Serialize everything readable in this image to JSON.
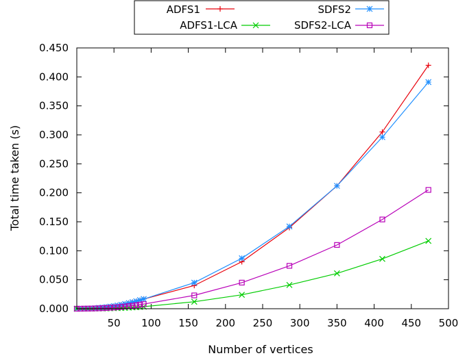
{
  "chart_data": {
    "type": "line",
    "xlabel": "Number of vertices",
    "ylabel": "Total time taken  (s)",
    "xlim": [
      0,
      500
    ],
    "ylim": [
      0,
      0.45
    ],
    "x_ticks": [
      "50",
      "100",
      "150",
      "200",
      "250",
      "300",
      "350",
      "400",
      "450",
      "500"
    ],
    "y_ticks": [
      "0.000",
      "0.050",
      "0.100",
      "0.150",
      "0.200",
      "0.250",
      "0.300",
      "0.350",
      "0.400",
      "0.450"
    ],
    "grid": false,
    "legend_position": "top-center",
    "series": [
      {
        "name": "ADFS1",
        "color": "#e8000b",
        "marker": "plus",
        "x": [
          0,
          5,
          10,
          15,
          20,
          25,
          30,
          35,
          40,
          45,
          50,
          55,
          60,
          65,
          70,
          75,
          80,
          85,
          90,
          158,
          222,
          286,
          350,
          411,
          473
        ],
        "y": [
          0.0,
          0.0,
          0.0002,
          0.0004,
          0.0006,
          0.001,
          0.0015,
          0.002,
          0.0028,
          0.0036,
          0.0045,
          0.0056,
          0.0068,
          0.0082,
          0.0097,
          0.0113,
          0.013,
          0.0148,
          0.0167,
          0.04,
          0.081,
          0.14,
          0.212,
          0.305,
          0.42
        ]
      },
      {
        "name": "SDFS2",
        "color": "#1f8fff",
        "marker": "star",
        "x": [
          0,
          5,
          10,
          15,
          20,
          25,
          30,
          35,
          40,
          45,
          50,
          55,
          60,
          65,
          70,
          75,
          80,
          85,
          90,
          158,
          222,
          286,
          350,
          411,
          473
        ],
        "y": [
          0.0,
          0.0,
          0.0002,
          0.0004,
          0.0006,
          0.001,
          0.0015,
          0.002,
          0.0028,
          0.0036,
          0.0045,
          0.0056,
          0.0068,
          0.0082,
          0.0097,
          0.0113,
          0.013,
          0.0148,
          0.0167,
          0.045,
          0.087,
          0.142,
          0.212,
          0.296,
          0.391
        ]
      },
      {
        "name": "ADFS1-LCA",
        "color": "#00cc00",
        "marker": "cross",
        "x": [
          0,
          5,
          10,
          15,
          20,
          25,
          30,
          35,
          40,
          45,
          50,
          55,
          60,
          65,
          70,
          75,
          80,
          85,
          90,
          158,
          222,
          286,
          350,
          411,
          473
        ],
        "y": [
          0.0,
          0.0,
          0.0,
          0.0,
          0.0001,
          0.0002,
          0.0003,
          0.0004,
          0.0005,
          0.0007,
          0.0009,
          0.0011,
          0.0013,
          0.0016,
          0.0019,
          0.0022,
          0.0026,
          0.003,
          0.0035,
          0.012,
          0.024,
          0.041,
          0.061,
          0.086,
          0.117
        ]
      },
      {
        "name": "SDFS2-LCA",
        "color": "#b800b8",
        "marker": "square",
        "x": [
          0,
          5,
          10,
          15,
          20,
          25,
          30,
          35,
          40,
          45,
          50,
          55,
          60,
          65,
          70,
          75,
          80,
          85,
          90,
          158,
          222,
          286,
          350,
          411,
          473
        ],
        "y": [
          0.0,
          0.0,
          0.0001,
          0.0002,
          0.0003,
          0.0005,
          0.0007,
          0.001,
          0.0013,
          0.0017,
          0.0021,
          0.0026,
          0.0032,
          0.0038,
          0.0045,
          0.0053,
          0.0061,
          0.007,
          0.008,
          0.023,
          0.045,
          0.074,
          0.11,
          0.154,
          0.205
        ]
      }
    ]
  }
}
